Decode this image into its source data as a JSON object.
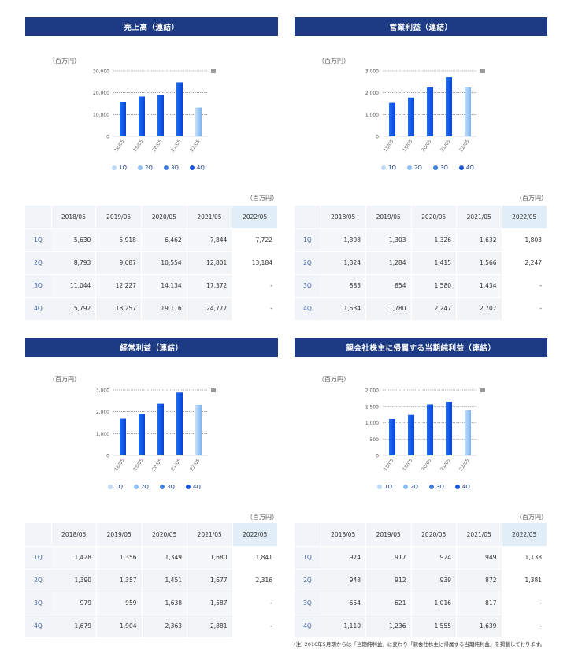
{
  "unit_label": "（百万円）",
  "legend": [
    {
      "label": "1Q",
      "color": "#bcd9f7"
    },
    {
      "label": "2Q",
      "color": "#8cc0f2"
    },
    {
      "label": "3Q",
      "color": "#3f7fdc"
    },
    {
      "label": "4Q",
      "color": "#1a55e0"
    }
  ],
  "columns": [
    "2018/05",
    "2019/05",
    "2020/05",
    "2021/05",
    "2022/05"
  ],
  "panels": [
    {
      "title": "売上高（連結）",
      "rows": [
        {
          "q": "1Q",
          "values": [
            "5,630",
            "5,918",
            "6,462",
            "7,844",
            "7,722"
          ]
        },
        {
          "q": "2Q",
          "values": [
            "8,793",
            "9,687",
            "10,554",
            "12,801",
            "13,184"
          ]
        },
        {
          "q": "3Q",
          "values": [
            "11,044",
            "12,227",
            "14,134",
            "17,372",
            "-"
          ]
        },
        {
          "q": "4Q",
          "values": [
            "15,792",
            "18,257",
            "19,116",
            "24,777",
            "-"
          ]
        }
      ]
    },
    {
      "title": "営業利益（連結）",
      "rows": [
        {
          "q": "1Q",
          "values": [
            "1,398",
            "1,303",
            "1,326",
            "1,632",
            "1,803"
          ]
        },
        {
          "q": "2Q",
          "values": [
            "1,324",
            "1,284",
            "1,415",
            "1,566",
            "2,247"
          ]
        },
        {
          "q": "3Q",
          "values": [
            "883",
            "854",
            "1,580",
            "1,434",
            "-"
          ]
        },
        {
          "q": "4Q",
          "values": [
            "1,534",
            "1,780",
            "2,247",
            "2,707",
            "-"
          ]
        }
      ]
    },
    {
      "title": "経常利益（連結）",
      "rows": [
        {
          "q": "1Q",
          "values": [
            "1,428",
            "1,356",
            "1,349",
            "1,680",
            "1,841"
          ]
        },
        {
          "q": "2Q",
          "values": [
            "1,390",
            "1,357",
            "1,451",
            "1,677",
            "2,316"
          ]
        },
        {
          "q": "3Q",
          "values": [
            "979",
            "959",
            "1,638",
            "1,587",
            "-"
          ]
        },
        {
          "q": "4Q",
          "values": [
            "1,679",
            "1,904",
            "2,363",
            "2,881",
            "-"
          ]
        }
      ]
    },
    {
      "title": "親会社株主に帰属する当期純利益（連結）",
      "rows": [
        {
          "q": "1Q",
          "values": [
            "974",
            "917",
            "924",
            "949",
            "1,138"
          ]
        },
        {
          "q": "2Q",
          "values": [
            "948",
            "912",
            "939",
            "872",
            "1,381"
          ]
        },
        {
          "q": "3Q",
          "values": [
            "654",
            "621",
            "1,016",
            "817",
            "-"
          ]
        },
        {
          "q": "4Q",
          "values": [
            "1,110",
            "1,236",
            "1,555",
            "1,639",
            "-"
          ]
        }
      ]
    }
  ],
  "chart_data": [
    {
      "type": "bar",
      "title": "売上高（連結）",
      "categories": [
        "18/05",
        "19/05",
        "20/05",
        "21/05",
        "22/05"
      ],
      "values": [
        15792,
        18257,
        19116,
        24777,
        13184
      ],
      "ylim": [
        0,
        30000
      ],
      "yticks": [
        "0",
        "10,000",
        "20,000",
        "30,000"
      ],
      "ytick_values": [
        0,
        10000,
        20000,
        30000
      ]
    },
    {
      "type": "bar",
      "title": "営業利益（連結）",
      "categories": [
        "18/05",
        "19/05",
        "20/05",
        "21/05",
        "22/05"
      ],
      "values": [
        1534,
        1780,
        2247,
        2707,
        2247
      ],
      "ylim": [
        0,
        3000
      ],
      "yticks": [
        "0",
        "1,000",
        "2,000",
        "3,000"
      ],
      "ytick_values": [
        0,
        1000,
        2000,
        3000
      ]
    },
    {
      "type": "bar",
      "title": "経常利益（連結）",
      "categories": [
        "18/05",
        "19/05",
        "20/05",
        "21/05",
        "22/05"
      ],
      "values": [
        1679,
        1904,
        2363,
        2881,
        2316
      ],
      "ylim": [
        0,
        3000
      ],
      "yticks": [
        "0",
        "1,000",
        "2,000",
        "3,000"
      ],
      "ytick_values": [
        0,
        1000,
        2000,
        3000
      ]
    },
    {
      "type": "bar",
      "title": "親会社株主に帰属する当期純利益（連結）",
      "categories": [
        "18/05",
        "19/05",
        "20/05",
        "21/05",
        "22/05"
      ],
      "values": [
        1110,
        1236,
        1555,
        1639,
        1381
      ],
      "ylim": [
        0,
        2000
      ],
      "yticks": [
        "0",
        "500",
        "1,000",
        "1,500",
        "2,000"
      ],
      "ytick_values": [
        0,
        500,
        1000,
        1500,
        2000
      ]
    }
  ],
  "footnote": "(注) 2016年5月期からは「当期純利益」に変わり「親会社株主に帰属する当期純利益」を掲載しております。"
}
